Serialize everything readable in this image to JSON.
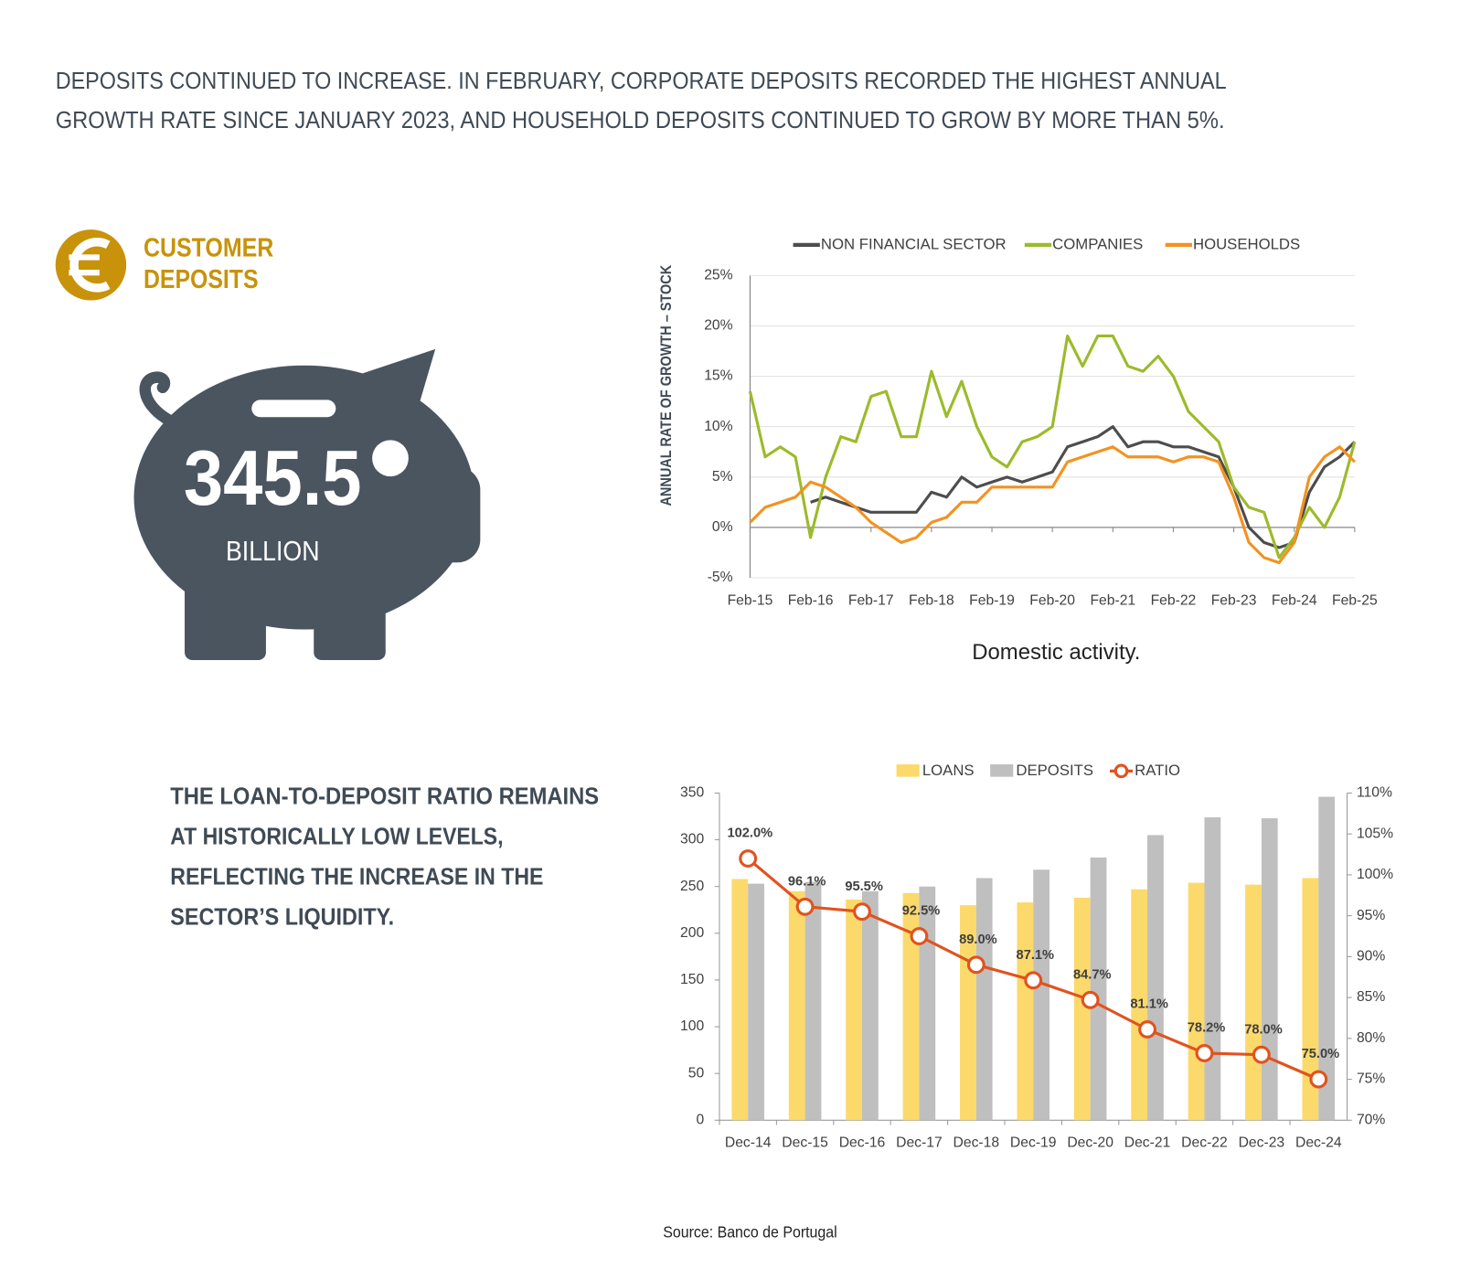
{
  "headline": [
    "DEPOSITS CONTINUED TO INCREASE. IN FEBRUARY, CORPORATE DEPOSITS RECORDED THE HIGHEST ANNUAL",
    "GROWTH RATE SINCE JANUARY 2023, AND HOUSEHOLD DEPOSITS CONTINUED TO GROW BY MORE THAN 5%."
  ],
  "section_title": [
    "CUSTOMER",
    "DEPOSITS"
  ],
  "deposits_total": 345.5,
  "deposits_unit": "BILLION",
  "ratio_note": [
    "THE LOAN-TO-DEPOSIT RATIO REMAINS",
    "AT HISTORICALLY LOW LEVELS,",
    "REFLECTING THE INCREASE IN THE",
    "SECTOR’S LIQUIDITY."
  ],
  "source": "Source: Banco de Portugal",
  "chart_data": [
    {
      "type": "line",
      "caption": "Domestic activity.",
      "y_label": "ANNUAL RATE OF GROWTH – STOCK",
      "categories": [
        "Feb-15",
        null,
        null,
        null,
        "Feb-16",
        null,
        null,
        null,
        "Feb-17",
        null,
        null,
        null,
        "Feb-18",
        null,
        null,
        null,
        "Feb-19",
        null,
        null,
        null,
        "Feb-20",
        null,
        null,
        null,
        "Feb-21",
        null,
        null,
        null,
        "Feb-22",
        null,
        null,
        null,
        "Feb-23",
        null,
        null,
        null,
        "Feb-24",
        null,
        null,
        null,
        "Feb-25"
      ],
      "series": [
        {
          "name": "NON FINANCIAL SECTOR",
          "color": "#4d4d4d",
          "values": [
            null,
            null,
            null,
            null,
            2.5,
            3,
            2.5,
            2,
            1.5,
            1.5,
            1.5,
            1.5,
            3.5,
            3,
            5,
            4,
            4.5,
            5,
            4.5,
            5,
            5.5,
            8,
            8.5,
            9,
            10,
            8,
            8.5,
            8.5,
            8,
            8,
            7.5,
            7,
            4,
            0,
            -1.5,
            -2,
            -1.5,
            3.5,
            6,
            7,
            8.5
          ]
        },
        {
          "name": "COMPANIES",
          "color": "#9bbb2a",
          "values": [
            13.5,
            7,
            8,
            7,
            -1,
            5,
            9,
            8.5,
            13,
            13.5,
            9,
            9,
            15.5,
            11,
            14.5,
            10,
            7,
            6,
            8.5,
            9,
            10,
            19,
            16,
            19,
            19,
            16,
            15.5,
            17,
            15,
            11.5,
            10,
            8.5,
            4,
            2,
            1.5,
            -3,
            -1,
            2,
            0,
            3,
            8.5
          ]
        },
        {
          "name": "HOUSEHOLDS",
          "color": "#f39221",
          "values": [
            0.5,
            2,
            2.5,
            3,
            4.5,
            4,
            3,
            2,
            0.5,
            -0.5,
            -1.5,
            -1,
            0.5,
            1,
            2.5,
            2.5,
            4,
            4,
            4,
            4,
            4,
            6.5,
            7,
            7.5,
            8,
            7,
            7,
            7,
            6.5,
            7,
            7,
            6.5,
            3,
            -1.5,
            -3,
            -3.5,
            -1.5,
            5,
            7,
            8,
            6.5
          ]
        }
      ],
      "ylim": [
        -5,
        25
      ],
      "yticks": [
        {
          "value": -5,
          "label": "-5%"
        },
        {
          "value": 0,
          "label": "0%"
        },
        {
          "value": 5,
          "label": "5%"
        },
        {
          "value": 10,
          "label": "10%"
        },
        {
          "value": 15,
          "label": "15%"
        },
        {
          "value": 20,
          "label": "20%"
        },
        {
          "value": 25,
          "label": "25%"
        }
      ],
      "grid": true,
      "legend": "top"
    },
    {
      "type": "bar-line",
      "categories": [
        "Dec-14",
        "Dec-15",
        "Dec-16",
        "Dec-17",
        "Dec-18",
        "Dec-19",
        "Dec-20",
        "Dec-21",
        "Dec-22",
        "Dec-23",
        "Dec-24"
      ],
      "series": [
        {
          "name": "LOANS",
          "color": "#fcd96b",
          "kind": "bar",
          "values": [
            258,
            245,
            236,
            243,
            230,
            233,
            238,
            247,
            254,
            252,
            259
          ]
        },
        {
          "name": "DEPOSITS",
          "color": "#bfbfbf",
          "kind": "bar",
          "values": [
            253,
            255,
            245,
            250,
            259,
            268,
            281,
            305,
            324,
            323,
            346
          ]
        },
        {
          "name": "RATIO",
          "color": "#e0531f",
          "kind": "line",
          "axis": "y2",
          "values": [
            102.0,
            96.1,
            95.5,
            92.5,
            89.0,
            87.1,
            84.7,
            81.1,
            78.2,
            78.0,
            75.0
          ],
          "value_labels": [
            "102.0%",
            "96.1%",
            "95.5%",
            "92.5%",
            "89.0%",
            "87.1%",
            "84.7%",
            "81.1%",
            "78.2%",
            "78.0%",
            "75.0%"
          ]
        }
      ],
      "ylim": [
        0,
        350
      ],
      "yticks": [
        0,
        50,
        100,
        150,
        200,
        250,
        300,
        350
      ],
      "y2lim": [
        70,
        110
      ],
      "y2ticks": [
        {
          "value": 70,
          "label": "70%"
        },
        {
          "value": 75,
          "label": "75%"
        },
        {
          "value": 80,
          "label": "80%"
        },
        {
          "value": 85,
          "label": "85%"
        },
        {
          "value": 90,
          "label": "90%"
        },
        {
          "value": 95,
          "label": "95%"
        },
        {
          "value": 100,
          "label": "100%"
        },
        {
          "value": 105,
          "label": "105%"
        },
        {
          "value": 110,
          "label": "110%"
        }
      ],
      "legend": "top"
    }
  ]
}
